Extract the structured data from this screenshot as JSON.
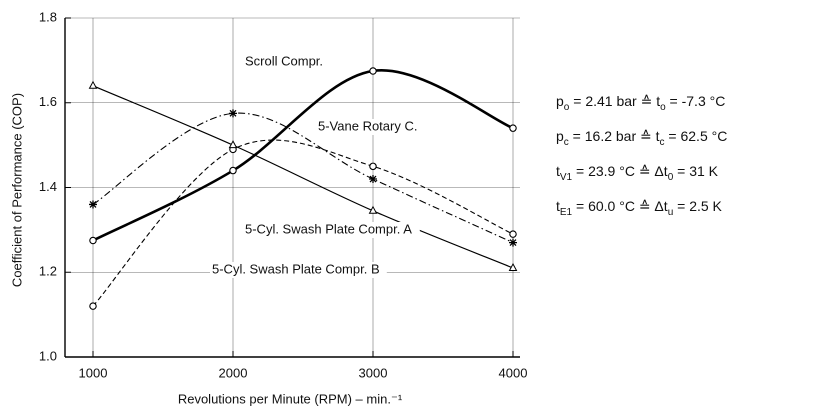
{
  "chart_data": {
    "type": "line",
    "x_label": "Revolutions per Minute (RPM) – min.⁻¹",
    "y_label": "Coefficient of Performance (COP)",
    "x": [
      1000,
      2000,
      3000,
      4000
    ],
    "xlim": [
      800,
      4050
    ],
    "xticks": [
      1000,
      2000,
      3000,
      4000
    ],
    "ylim": [
      1.0,
      1.8
    ],
    "yticks": [
      {
        "value": 1.0,
        "label": "1.0"
      },
      1.2,
      1.4,
      1.6,
      {
        "value": 1.8,
        "label": "1.8"
      }
    ],
    "grid": true,
    "series": [
      {
        "name": "Scroll Compr.",
        "color": "#000000",
        "marker": "circle",
        "dash": "none",
        "width": 2.6,
        "values": [
          1.275,
          1.44,
          1.675,
          1.54
        ]
      },
      {
        "name": "5-Vane Rotary C.",
        "color": "#000000",
        "marker": "circle",
        "dash": "5,3",
        "width": 1.1,
        "values": [
          1.12,
          1.49,
          1.45,
          1.29
        ]
      },
      {
        "name": "5-Cyl. Swash Plate Compr. A",
        "color": "#000000",
        "marker": "star",
        "dash": "7,3,1.5,3",
        "width": 1.1,
        "values": [
          1.36,
          1.575,
          1.42,
          1.27
        ]
      },
      {
        "name": "5-Cyl. Swash Plate Compr. B",
        "color": "#000000",
        "marker": "triangle",
        "dash": "none",
        "width": 1.2,
        "values": [
          1.64,
          1.5,
          1.345,
          1.21
        ]
      }
    ],
    "annotations": [
      {
        "parts": [
          {
            "text": "p"
          },
          {
            "text": "o",
            "sub": true
          },
          {
            "text": " = 2.41 bar  ≙  t"
          },
          {
            "text": "o",
            "sub": true
          },
          {
            "text": " = -7.3 °C"
          }
        ]
      },
      {
        "parts": [
          {
            "text": "p"
          },
          {
            "text": "c",
            "sub": true
          },
          {
            "text": " = 16.2 bar  ≙  t"
          },
          {
            "text": "c",
            "sub": true
          },
          {
            "text": " = 62.5 °C"
          }
        ]
      },
      {
        "parts": [
          {
            "text": "t"
          },
          {
            "text": "V1",
            "sub": true
          },
          {
            "text": " = 23.9  °C  ≙ Δt"
          },
          {
            "text": "0",
            "sub": true
          },
          {
            "text": " = 31 K"
          }
        ]
      },
      {
        "parts": [
          {
            "text": "t"
          },
          {
            "text": "E1",
            "sub": true
          },
          {
            "text": " = 60.0  °C  ≙ Δt"
          },
          {
            "text": "u",
            "sub": true
          },
          {
            "text": " = 2.5 K"
          }
        ]
      }
    ]
  }
}
